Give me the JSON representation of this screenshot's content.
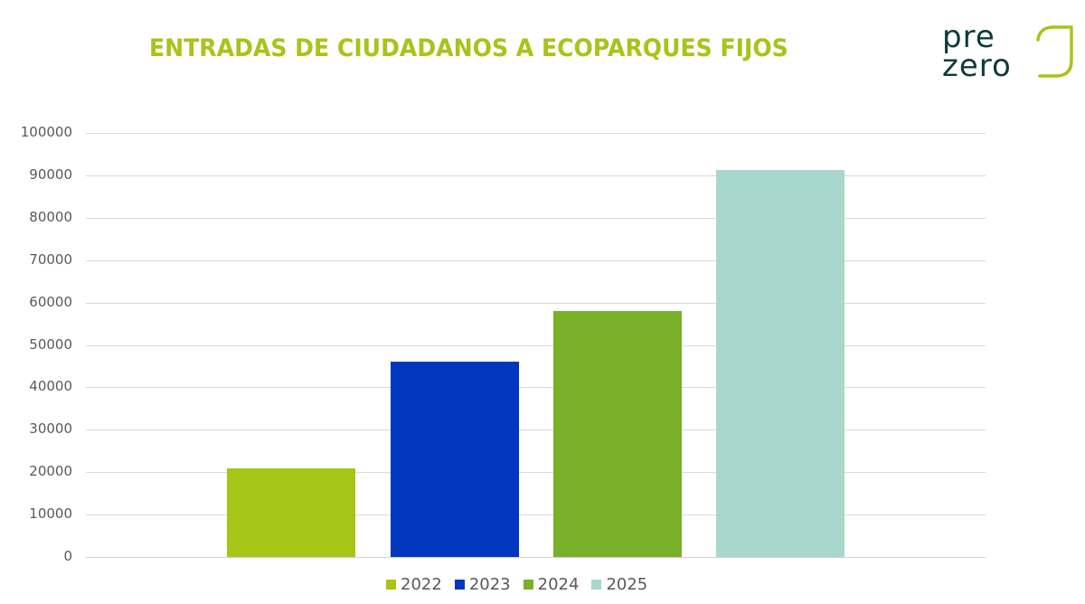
{
  "header": {
    "title": "ENTRADAS DE CIUDADANOS A ECOPARQUES FIJOS",
    "logo": {
      "line1": "pre",
      "line2": "zero",
      "text_color": "#103a3a",
      "accent_color": "#a5c51a"
    }
  },
  "colors": {
    "title": "#a5c51a",
    "2022": "#a6c617",
    "2023": "#0037be",
    "2024": "#78b128",
    "2025": "#a9d7cd"
  },
  "chart_data": {
    "type": "bar",
    "title": "ENTRADAS DE CIUDADANOS A ECOPARQUES FIJOS",
    "xlabel": "",
    "ylabel": "",
    "categories": [
      "2022",
      "2023",
      "2024",
      "2025"
    ],
    "series": [
      {
        "name": "2022",
        "values": [
          20800
        ],
        "color": "#a6c617"
      },
      {
        "name": "2023",
        "values": [
          46000
        ],
        "color": "#0037be"
      },
      {
        "name": "2024",
        "values": [
          58000
        ],
        "color": "#78b128"
      },
      {
        "name": "2025",
        "values": [
          91300
        ],
        "color": "#a9d7cd"
      }
    ],
    "values": [
      20800,
      46000,
      58000,
      91300
    ],
    "ylim": [
      0,
      100000
    ],
    "yticks": [
      "0",
      "10000",
      "20000",
      "30000",
      "40000",
      "50000",
      "60000",
      "70000",
      "80000",
      "90000",
      "100000"
    ],
    "grid": true,
    "legend_position": "bottom",
    "legend": [
      "2022",
      "2023",
      "2024",
      "2025"
    ]
  }
}
